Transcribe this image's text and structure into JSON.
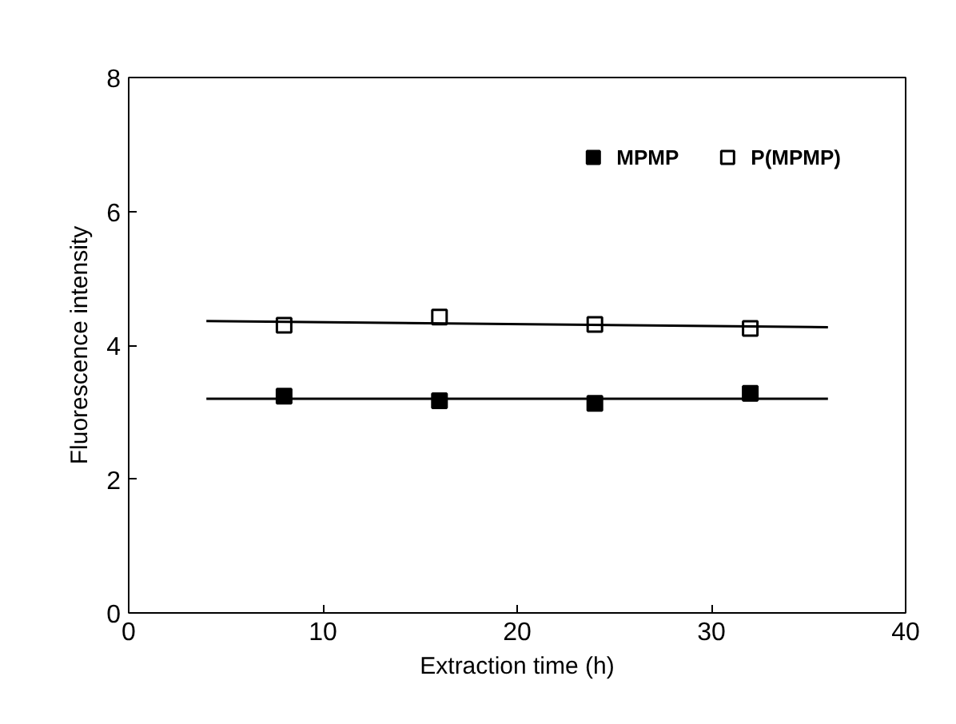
{
  "chart_data": {
    "type": "scatter",
    "xlabel": "Extraction time (h)",
    "ylabel": "Fluorescence intensity",
    "xlim": [
      0,
      40
    ],
    "xticks": [
      0,
      10,
      20,
      30,
      40
    ],
    "ylim": [
      0,
      8
    ],
    "yticks": [
      0,
      2,
      4,
      6,
      8
    ],
    "grid": false,
    "legend": "top right",
    "series": [
      {
        "name": "MPMP",
        "color": "#000000",
        "marker": "square",
        "x": [
          8,
          16,
          24,
          32
        ],
        "values": [
          3.24,
          3.17,
          3.13,
          3.28
        ]
      },
      {
        "name": "P(MPMP)",
        "color": "#000000",
        "marker": "square",
        "x": [
          8,
          16,
          24,
          32
        ],
        "values": [
          4.3,
          4.42,
          4.31,
          4.25
        ]
      },
      {
        "type": "line",
        "color": "#000000",
        "marker": "none",
        "x": [
          4,
          36
        ],
        "values": [
          3.2,
          3.2
        ]
      },
      {
        "type": "line",
        "color": "#000000",
        "marker": "none",
        "x": [
          4,
          36
        ],
        "values": [
          4.36,
          4.27
        ]
      }
    ]
  }
}
